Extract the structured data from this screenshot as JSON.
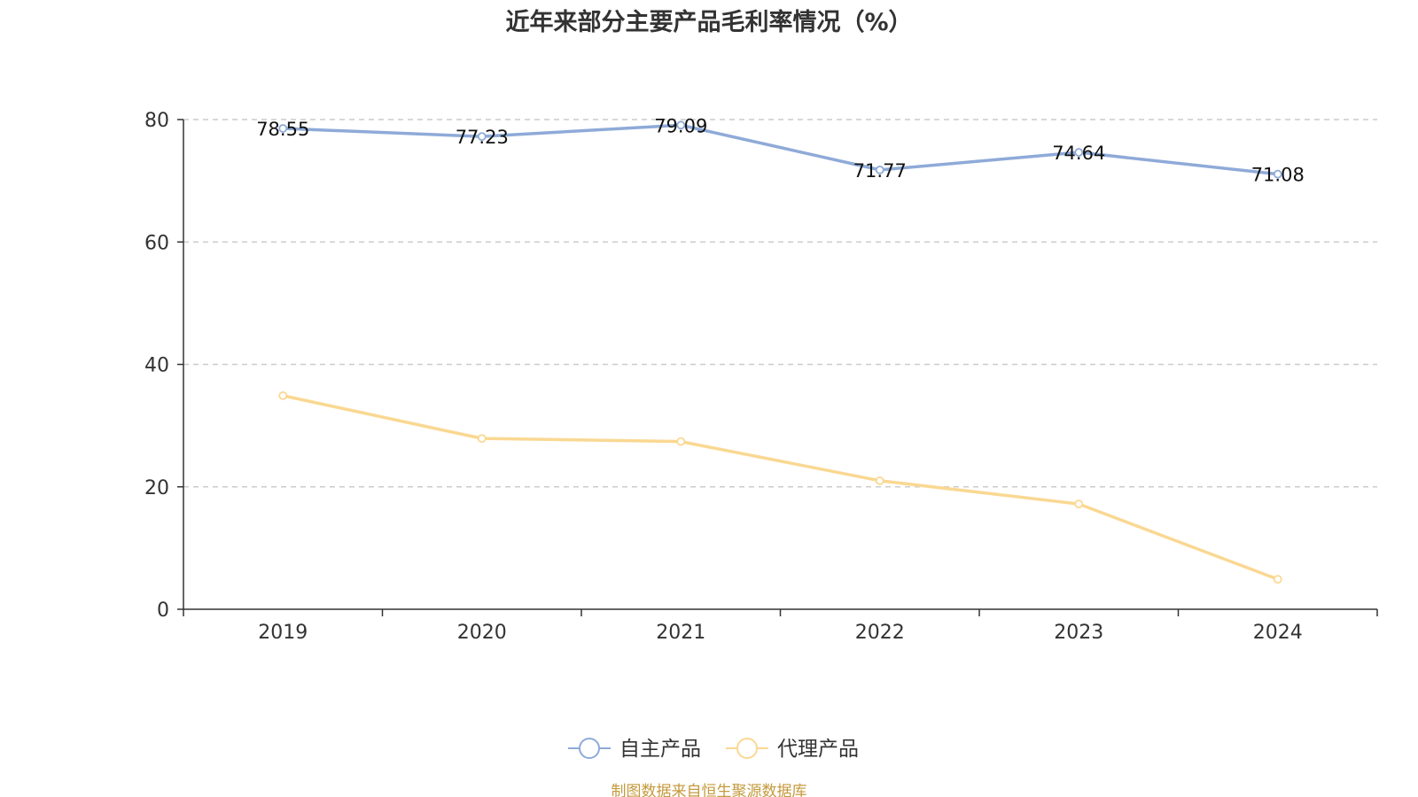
{
  "chart_data": {
    "type": "line",
    "title": "近年来部分主要产品毛利率情况（%）",
    "categories": [
      "2019",
      "2020",
      "2021",
      "2022",
      "2023",
      "2024"
    ],
    "ylim": [
      0,
      80
    ],
    "yticks": [
      0,
      20,
      40,
      60,
      80
    ],
    "grid": true,
    "legend_position": "bottom",
    "series": [
      {
        "name": "自主产品",
        "color": "#8eaad8",
        "values": [
          78.55,
          77.23,
          79.09,
          71.77,
          74.64,
          71.08
        ],
        "labels": [
          "78.55",
          "77.23",
          "79.09",
          "71.77",
          "74.64",
          "71.08"
        ],
        "show_labels": true
      },
      {
        "name": "代理产品",
        "color": "#fad892",
        "values": [
          34.9,
          27.9,
          27.4,
          21.0,
          17.2,
          4.9
        ],
        "labels": [],
        "show_labels": false
      }
    ]
  },
  "source": {
    "text": "制图数据来自恒生聚源数据库",
    "color": "#c49a3c"
  }
}
